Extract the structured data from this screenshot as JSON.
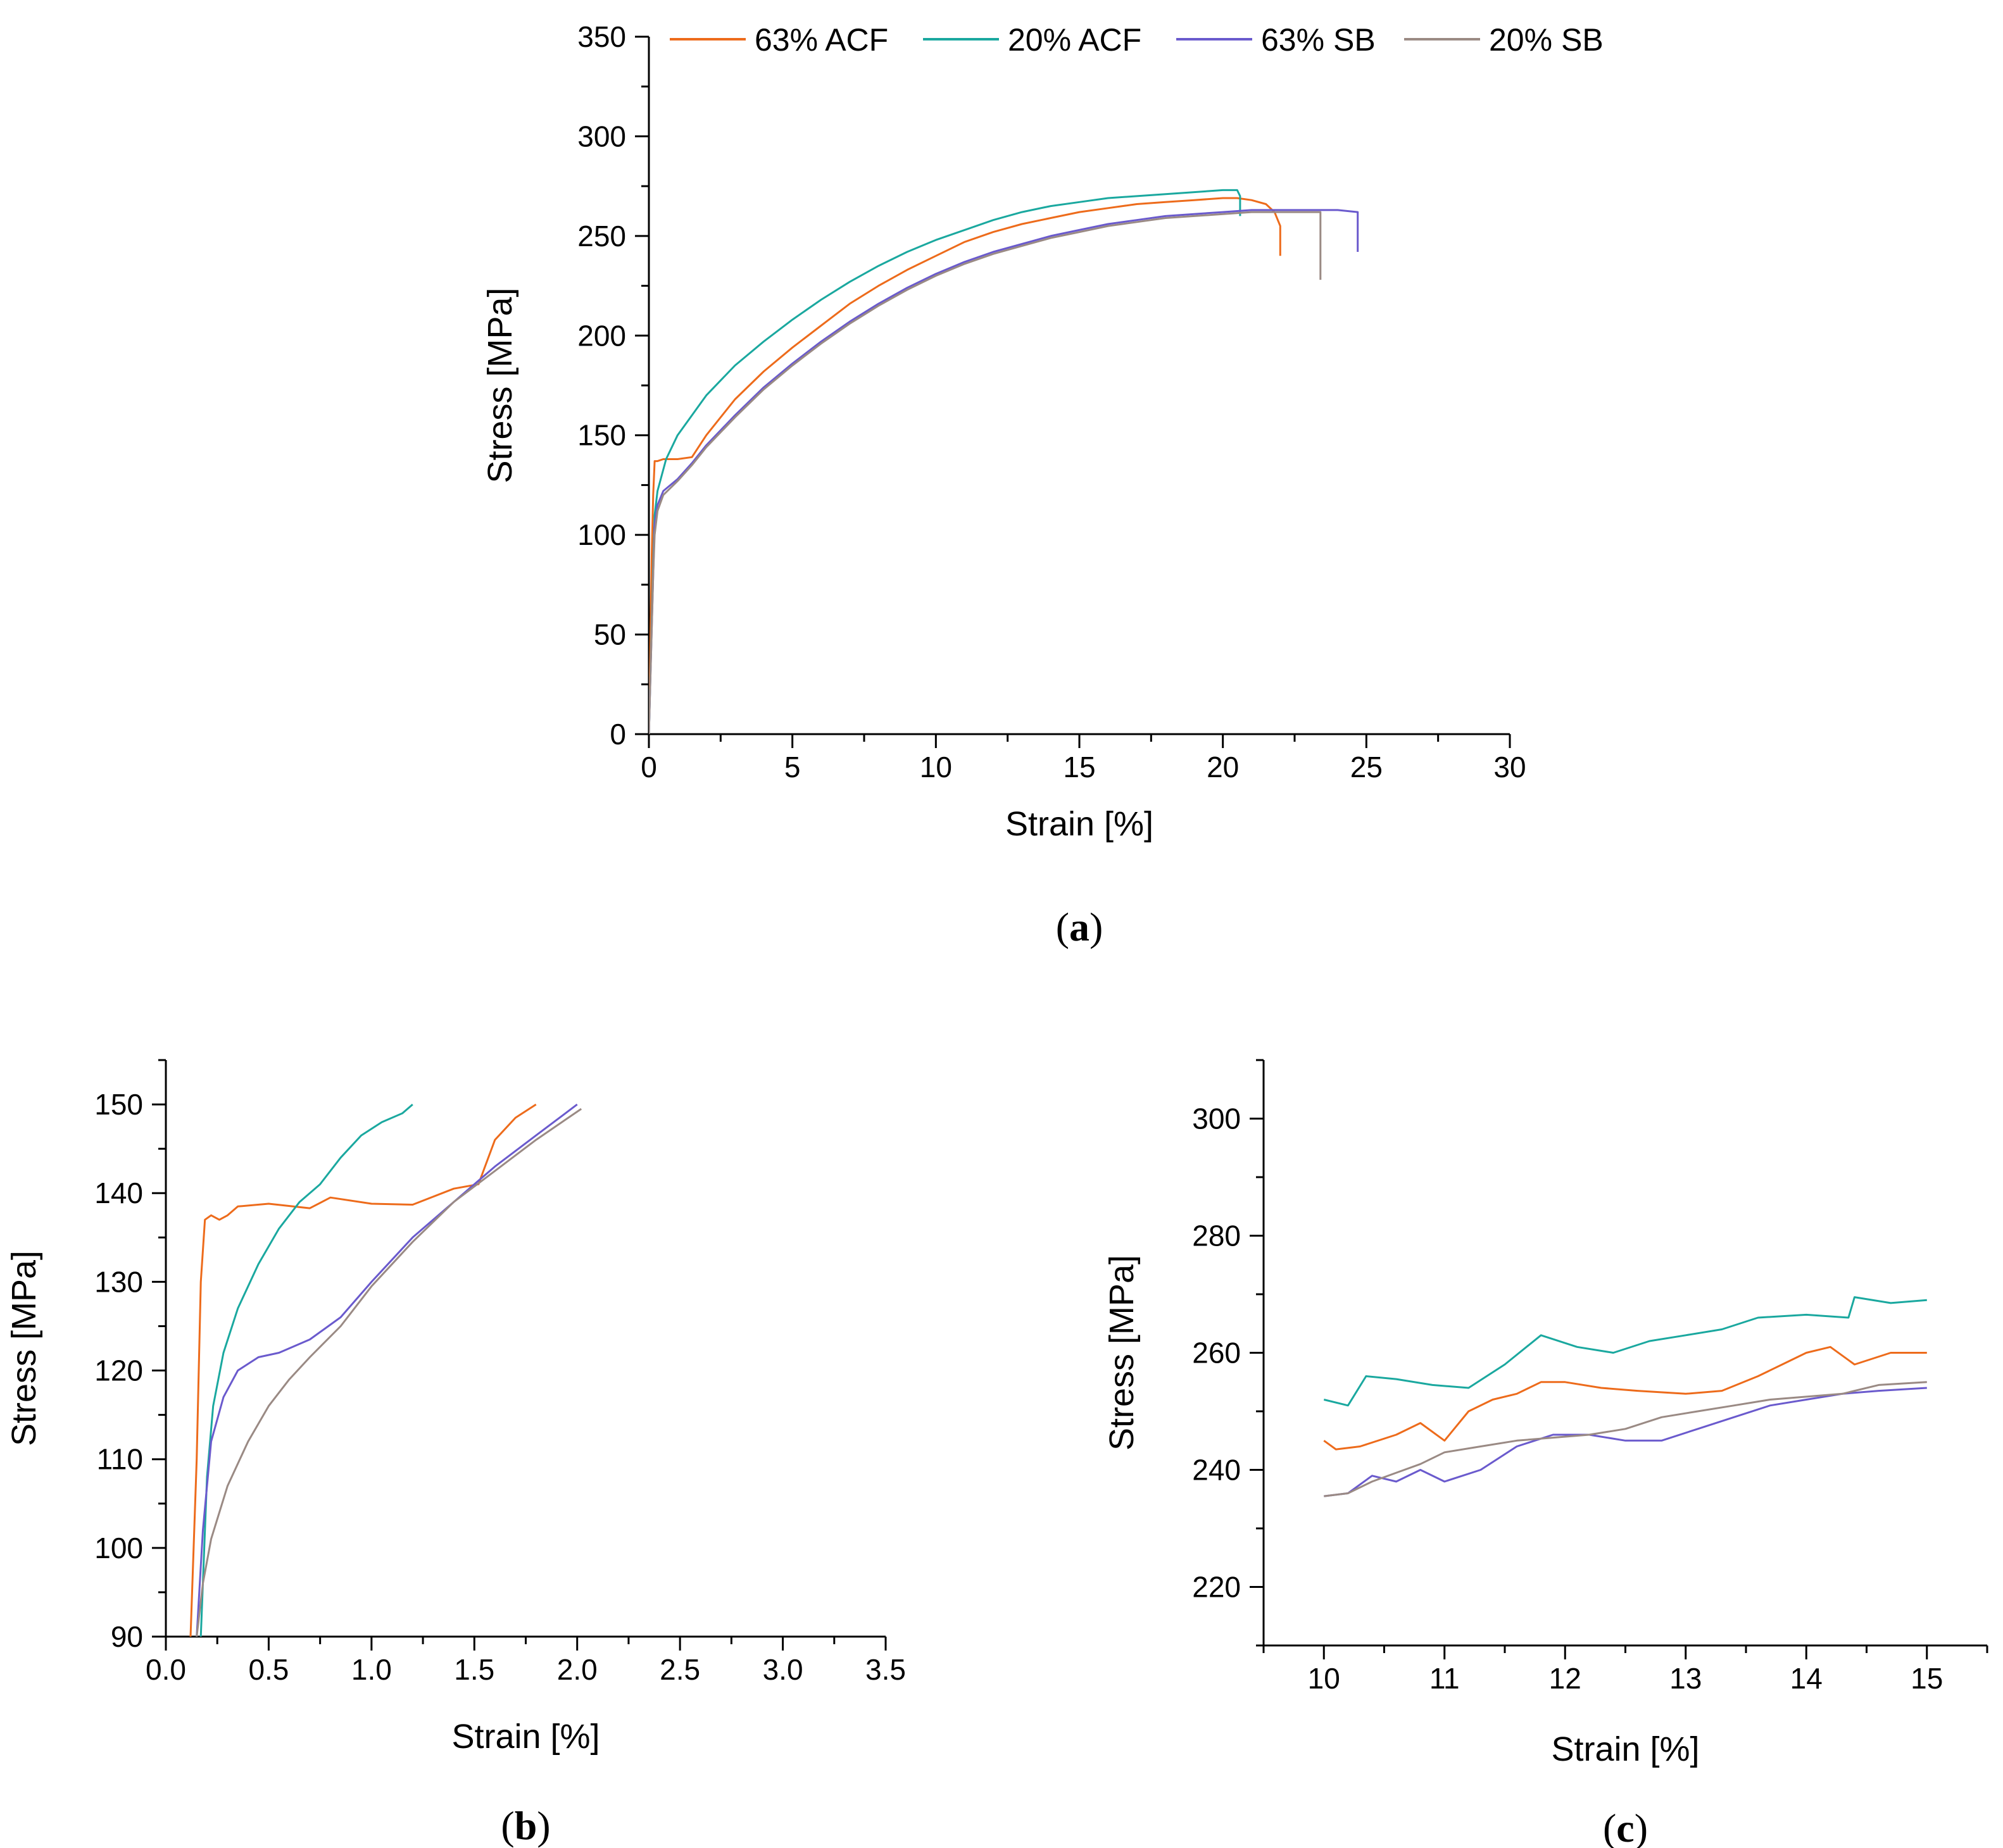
{
  "figure": {
    "legend": [
      {
        "name": "63% ACF",
        "color": "#ed6b1b"
      },
      {
        "name": "20% ACF",
        "color": "#1aa89f"
      },
      {
        "name": "63% SB",
        "color": "#6a5acd"
      },
      {
        "name": "20% SB",
        "color": "#9a8a84"
      }
    ]
  },
  "chart_data": [
    {
      "id": "a",
      "caption": "a",
      "type": "line",
      "xlabel": "Strain [%]",
      "ylabel": "Stress [MPa]",
      "xlim": [
        0,
        30
      ],
      "ylim": [
        0,
        350
      ],
      "xticks": [
        0,
        5,
        10,
        15,
        20,
        25,
        30
      ],
      "xtick_labels": [
        "0",
        "5",
        "10",
        "15",
        "20",
        "25",
        "30"
      ],
      "yticks": [
        0,
        50,
        100,
        150,
        200,
        250,
        300,
        350
      ],
      "ytick_labels": [
        "0",
        "50",
        "100",
        "150",
        "200",
        "250",
        "300",
        "350"
      ],
      "legend_position": "top",
      "series": [
        {
          "name": "63% ACF",
          "color": "#ed6b1b",
          "x": [
            0,
            0.1,
            0.15,
            0.2,
            0.3,
            0.5,
            1,
            1.5,
            2,
            3,
            4,
            5,
            6,
            7,
            8,
            9,
            10,
            11,
            12,
            13,
            14,
            15,
            16,
            17,
            18,
            19,
            20,
            20.5,
            21,
            21.5,
            21.8,
            22,
            22
          ],
          "y": [
            0,
            90,
            120,
            137,
            137,
            138,
            138,
            139,
            150,
            168,
            182,
            194,
            205,
            216,
            225,
            233,
            240,
            247,
            252,
            256,
            259,
            262,
            264,
            266,
            267,
            268,
            269,
            269,
            268,
            266,
            262,
            255,
            240
          ]
        },
        {
          "name": "20% ACF",
          "color": "#1aa89f",
          "x": [
            0,
            0.15,
            0.2,
            0.3,
            0.6,
            1,
            1.5,
            2,
            3,
            4,
            5,
            6,
            7,
            8,
            9,
            10,
            11,
            12,
            13,
            14,
            15,
            16,
            17,
            18,
            19,
            20,
            20.5,
            20.6,
            20.6
          ],
          "y": [
            0,
            85,
            110,
            122,
            138,
            150,
            160,
            170,
            185,
            197,
            208,
            218,
            227,
            235,
            242,
            248,
            253,
            258,
            262,
            265,
            267,
            269,
            270,
            271,
            272,
            273,
            273,
            270,
            260
          ]
        },
        {
          "name": "63% SB",
          "color": "#6a5acd",
          "x": [
            0,
            0.15,
            0.2,
            0.3,
            0.5,
            1,
            1.5,
            2,
            3,
            4,
            5,
            6,
            7,
            8,
            9,
            10,
            11,
            12,
            13,
            14,
            15,
            16,
            17,
            18,
            19,
            20,
            21,
            22,
            23,
            24,
            24.7,
            24.7
          ],
          "y": [
            0,
            80,
            105,
            115,
            122,
            128,
            136,
            145,
            160,
            174,
            186,
            197,
            207,
            216,
            224,
            231,
            237,
            242,
            246,
            250,
            253,
            256,
            258,
            260,
            261,
            262,
            263,
            263,
            263,
            263,
            262,
            242
          ]
        },
        {
          "name": "20% SB",
          "color": "#9a8a84",
          "x": [
            0,
            0.15,
            0.2,
            0.3,
            0.5,
            1,
            1.5,
            2,
            3,
            4,
            5,
            6,
            7,
            8,
            9,
            10,
            11,
            12,
            13,
            14,
            15,
            16,
            17,
            18,
            19,
            20,
            21,
            22,
            23,
            23.4,
            23.4
          ],
          "y": [
            0,
            80,
            100,
            112,
            120,
            127,
            135,
            144,
            159,
            173,
            185,
            196,
            206,
            215,
            223,
            230,
            236,
            241,
            245,
            249,
            252,
            255,
            257,
            259,
            260,
            261,
            262,
            262,
            262,
            262,
            228
          ]
        }
      ]
    },
    {
      "id": "b",
      "caption": "b",
      "type": "line",
      "xlabel": "Strain [%]",
      "ylabel": "Stress [MPa]",
      "xlim": [
        0,
        3.5
      ],
      "ylim": [
        90,
        155
      ],
      "xticks": [
        0,
        0.5,
        1,
        1.5,
        2,
        2.5,
        3,
        3.5
      ],
      "xtick_labels": [
        "0.0",
        "0.5",
        "1.0",
        "1.5",
        "2.0",
        "2.5",
        "3.0",
        "3.5"
      ],
      "yticks": [
        90,
        100,
        110,
        120,
        130,
        140,
        150
      ],
      "ytick_labels": [
        "90",
        "100",
        "110",
        "120",
        "130",
        "140",
        "150"
      ],
      "series": [
        {
          "name": "63% ACF",
          "color": "#ed6b1b",
          "x": [
            0.12,
            0.15,
            0.17,
            0.19,
            0.22,
            0.26,
            0.3,
            0.35,
            0.5,
            0.7,
            0.8,
            1.0,
            1.2,
            1.4,
            1.52,
            1.6,
            1.7,
            1.8
          ],
          "y": [
            90,
            110,
            130,
            137,
            137.5,
            137,
            137.5,
            138.5,
            138.8,
            138.3,
            139.5,
            138.8,
            138.7,
            140.5,
            141,
            146,
            148.5,
            150
          ]
        },
        {
          "name": "20% ACF",
          "color": "#1aa89f",
          "x": [
            0.17,
            0.2,
            0.23,
            0.28,
            0.35,
            0.45,
            0.55,
            0.65,
            0.75,
            0.85,
            0.95,
            1.05,
            1.15,
            1.2
          ],
          "y": [
            90,
            108,
            116,
            122,
            127,
            132,
            136,
            139,
            141,
            144,
            146.5,
            148,
            149,
            150
          ]
        },
        {
          "name": "63% SB",
          "color": "#6a5acd",
          "x": [
            0.15,
            0.18,
            0.22,
            0.28,
            0.35,
            0.45,
            0.55,
            0.7,
            0.85,
            1.0,
            1.2,
            1.4,
            1.6,
            1.8,
            2.0
          ],
          "y": [
            90,
            102,
            112,
            117,
            120,
            121.5,
            122,
            123.5,
            126,
            130,
            135,
            139,
            143,
            146.5,
            150
          ]
        },
        {
          "name": "20% SB",
          "color": "#9a8a84",
          "x": [
            0.15,
            0.18,
            0.22,
            0.3,
            0.4,
            0.5,
            0.6,
            0.7,
            0.85,
            1.0,
            1.2,
            1.4,
            1.6,
            1.8,
            2.02
          ],
          "y": [
            90,
            96,
            101,
            107,
            112,
            116,
            119,
            121.5,
            125,
            129.5,
            134.5,
            139,
            142.5,
            146,
            149.5
          ]
        }
      ]
    },
    {
      "id": "c",
      "caption": "c",
      "type": "line",
      "xlabel": "Strain [%]",
      "ylabel": "Stress [MPa]",
      "xlim": [
        9.5,
        15.5
      ],
      "ylim": [
        210,
        310
      ],
      "xticks": [
        10,
        11,
        12,
        13,
        14,
        15
      ],
      "xtick_labels": [
        "10",
        "11",
        "12",
        "13",
        "14",
        "15"
      ],
      "yticks": [
        220,
        240,
        260,
        280,
        300
      ],
      "ytick_labels": [
        "220",
        "240",
        "260",
        "280",
        "300"
      ],
      "series": [
        {
          "name": "63% ACF",
          "color": "#ed6b1b",
          "x": [
            10.0,
            10.1,
            10.3,
            10.6,
            10.8,
            11.0,
            11.2,
            11.4,
            11.6,
            11.8,
            12.0,
            12.3,
            12.6,
            13.0,
            13.3,
            13.6,
            13.8,
            14.0,
            14.2,
            14.4,
            14.7,
            15.0
          ],
          "y": [
            245,
            243.5,
            244,
            246,
            248,
            245,
            250,
            252,
            253,
            255,
            255,
            254,
            253.5,
            253,
            253.5,
            256,
            258,
            260,
            261,
            258,
            260,
            260
          ]
        },
        {
          "name": "20% ACF",
          "color": "#1aa89f",
          "x": [
            10.0,
            10.2,
            10.35,
            10.6,
            10.9,
            11.2,
            11.5,
            11.8,
            12.1,
            12.4,
            12.7,
            13.0,
            13.3,
            13.6,
            14.0,
            14.35,
            14.4,
            14.7,
            15.0
          ],
          "y": [
            252,
            251,
            256,
            255.5,
            254.5,
            254,
            258,
            263,
            261,
            260,
            262,
            263,
            264,
            266,
            266.5,
            266,
            269.5,
            268.5,
            269
          ]
        },
        {
          "name": "63% SB",
          "color": "#6a5acd",
          "x": [
            10.0,
            10.2,
            10.4,
            10.6,
            10.8,
            11.0,
            11.3,
            11.6,
            11.9,
            12.2,
            12.5,
            12.8,
            13.1,
            13.4,
            13.7,
            14.0,
            14.3,
            14.6,
            15.0
          ],
          "y": [
            235.5,
            236,
            239,
            238,
            240,
            238,
            240,
            244,
            246,
            246,
            245,
            245,
            247,
            249,
            251,
            252,
            253,
            253.5,
            254
          ]
        },
        {
          "name": "20% SB",
          "color": "#9a8a84",
          "x": [
            10.0,
            10.2,
            10.4,
            10.6,
            10.8,
            11.0,
            11.3,
            11.6,
            11.9,
            12.2,
            12.5,
            12.8,
            13.1,
            13.4,
            13.7,
            14.0,
            14.3,
            14.6,
            15.0
          ],
          "y": [
            235.5,
            236,
            238,
            239.5,
            241,
            243,
            244,
            245,
            245.5,
            246,
            247,
            249,
            250,
            251,
            252,
            252.5,
            253,
            254.5,
            255
          ]
        }
      ]
    }
  ]
}
